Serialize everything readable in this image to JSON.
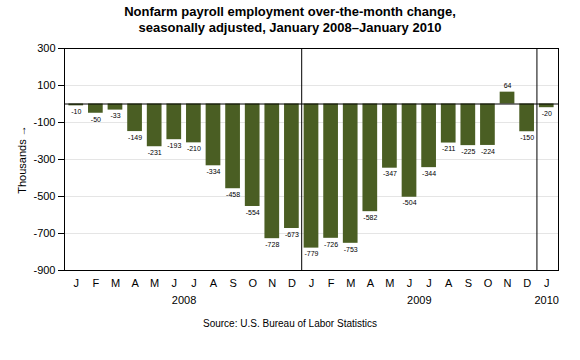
{
  "chart_data": {
    "type": "bar",
    "title": "Nonfarm payroll employment over-the-month change,",
    "subtitle": "seasonally adjusted, January 2008–January 2010",
    "caption": "Source: U.S. Bureau of Labor Statistics",
    "ylabel": "Thousands",
    "categories": [
      "J",
      "F",
      "M",
      "A",
      "M",
      "J",
      "J",
      "A",
      "S",
      "O",
      "N",
      "D",
      "J",
      "F",
      "M",
      "A",
      "M",
      "J",
      "J",
      "A",
      "S",
      "O",
      "N",
      "D",
      "J"
    ],
    "values": [
      -10,
      -50,
      -33,
      -149,
      -231,
      -193,
      -210,
      -334,
      -458,
      -554,
      -728,
      -673,
      -779,
      -726,
      -753,
      -582,
      -347,
      -504,
      -344,
      -211,
      -225,
      -224,
      64,
      -150,
      -20
    ],
    "color": "#4a5e23",
    "ylim": [
      -900,
      300
    ],
    "yticks": [
      -900,
      -700,
      -500,
      -300,
      -100,
      100,
      300
    ],
    "grid": true,
    "data_labels": true,
    "annotations": [
      {
        "text": "2008",
        "x": 5.5
      },
      {
        "text": "2009",
        "x": 17.5
      },
      {
        "text": "2010",
        "x": 24
      }
    ],
    "vlines": [
      11.5,
      23.5
    ]
  }
}
